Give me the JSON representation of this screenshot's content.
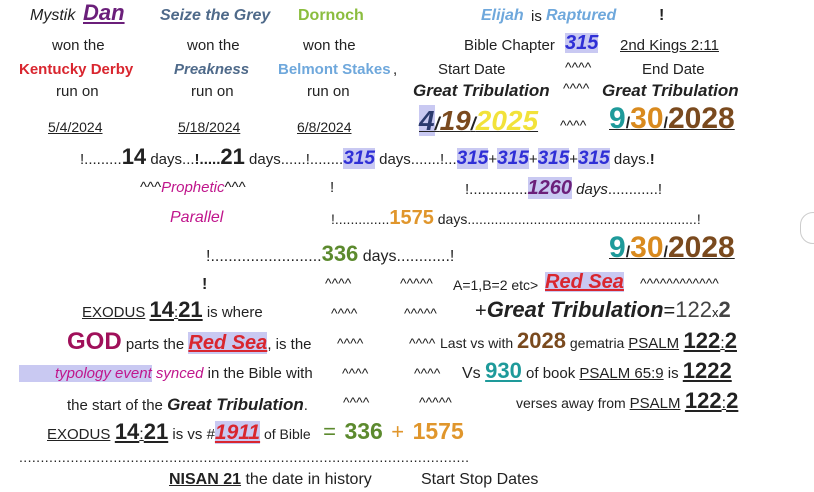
{
  "top": {
    "mystik": "Mystik",
    "dan": "Dan",
    "seize": "Seize the Grey",
    "dornoch": "Dornoch",
    "elijah": "Elijah",
    "is": "is",
    "raptured": "Raptured",
    "bang": "!"
  },
  "row2": {
    "won1": "won the",
    "won2": "won the",
    "won3": "won the",
    "bible_chapter": "Bible Chapter",
    "n315": "315",
    "kings": "2nd Kings 2:11"
  },
  "row3": {
    "kentucky": "Kentucky Derby",
    "preakness": "Preakness",
    "belmont": "Belmont Stakes",
    "comma": ",",
    "start_date": "Start Date",
    "carets": "^^^^",
    "end_date": "End Date"
  },
  "row4": {
    "run1": "run on",
    "run2": "run on",
    "run3": "run on",
    "gt1": "Great Tribulation",
    "carets": "^^^^",
    "gt2": "Great Tribulation"
  },
  "row5": {
    "d1": "5/4/2024",
    "d2": "5/18/2024",
    "d3": "6/8/2024",
    "start_m": "4",
    "start_sep1": "/",
    "start_d": "19",
    "start_sep2": "/",
    "start_y": "2025",
    "carets": "^^^^",
    "end_m": "9",
    "end_sep1": "/",
    "end_d": "30",
    "end_sep2": "/",
    "end_y": "2028"
  },
  "row6": {
    "a": "!.........",
    "n14": "14",
    "days1": " days...",
    "b": "!.....",
    "n21": "21",
    "days2": " days......",
    "c": "!........",
    "n315": "315",
    "days3": " days.......",
    "d": "!...",
    "e315a": "315",
    "p1": "+",
    "e315b": "315",
    "p2": "+",
    "e315c": "315",
    "p3": "+",
    "e315d": "315",
    "days4": " days.",
    "e": "!"
  },
  "row7": {
    "c1": "^^^",
    "prophetic": "Prophetic",
    "c2": "^^^",
    "bang": "!",
    "dots": "!..............",
    "n1260": "1260",
    "days": " days",
    "dots2": "............!"
  },
  "row8": {
    "parallel": "Parallel",
    "dots": "!..............",
    "n1575": "1575",
    "days": " days",
    "dots2": "...........................................................!"
  },
  "row9": {
    "dots": "!.........................",
    "n336": "336",
    "days": " days",
    "dots2": "............!",
    "m": "9",
    "s1": "/",
    "d": "30",
    "s2": "/",
    "y": "2028"
  },
  "row10": {
    "bang": "!",
    "c1": "^^^^",
    "c2": "^^^^^",
    "abc": "A=1,B=2 etc>",
    "red_sea": "Red Sea",
    "c3": "^^^^^^^^^^^^"
  },
  "row11": {
    "exodus": "EXODUS",
    "n14": "14",
    "colon": ":",
    "n21": "21",
    "where": " is where",
    "c1": "^^^^",
    "c2": "^^^^^",
    "plus": "+",
    "gt": "Great Tribulation",
    "eq": "=",
    "n122": "122",
    "x": "x",
    "n2": "2"
  },
  "row12": {
    "god": "GOD",
    "parts": " parts the ",
    "red_sea": "Red Sea",
    "is_the": ",  is the",
    "c1": "^^^^",
    "c2": "^^^^",
    "last": "Last vs with ",
    "n2028": "2028",
    "gem": " gematria ",
    "psalm": "PSALM",
    "n122": "122",
    "colon": ":",
    "n2": "2"
  },
  "row13": {
    "typology": "typology event",
    "synced": " synced",
    "inbible": " in the Bible with",
    "c1": "^^^^",
    "c2": "^^^^",
    "vs": "Vs ",
    "n930": "930",
    "ofbook": "  of  book  ",
    "psalm659": "PSALM 65:9",
    "is": " is ",
    "n1222": "1222"
  },
  "row14": {
    "start": "the start of the ",
    "gt": "Great Tribulation",
    "period": ".",
    "c1": "^^^^",
    "c2": "^^^^^",
    "verses": "verses away from ",
    "psalm": "PSALM",
    "n122": "122",
    "colon": ":",
    "n2": "2"
  },
  "row15": {
    "exodus": "EXODUS",
    "n14": "14",
    "colon": ":",
    "n21": "21",
    "isvs": " is vs #",
    "n1911": "1911",
    "ofbible": " of Bible",
    "eq": "=",
    "n336": "336",
    "plus": "+",
    "n1575": "1575"
  },
  "row16": {
    "dots": "........................................................................................................."
  },
  "row17": {
    "nisan": "NISAN 21",
    "date": " the date in history",
    "ss": "Start Stop Dates"
  }
}
